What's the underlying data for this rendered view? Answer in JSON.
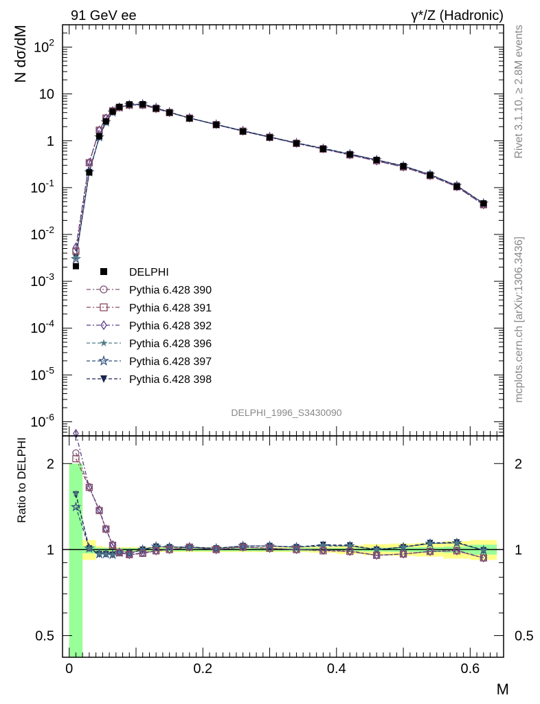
{
  "header": {
    "left": "91 GeV ee",
    "right": "γ*/Z (Hadronic)"
  },
  "side": {
    "rivet": "Rivet 3.1.10, ≥ 2.8M events",
    "mcplots": "mcplots.cern.ch [arXiv:1306.3436]"
  },
  "watermark": "DELPHI_1996_S3430090",
  "colors": {
    "data": "#000000",
    "p390": "#7d5678",
    "p391": "#8a4a5e",
    "p392": "#5b3b86",
    "p396": "#4e7b86",
    "p397": "#2f4d78",
    "p398": "#1a2550",
    "band_green": "#99ff99",
    "band_yellow": "#ffff88"
  },
  "chart_data": [
    {
      "type": "line",
      "panel": "main",
      "ylabel": "N dσ/dM",
      "xlabel": "",
      "yscale": "log",
      "ylim": [
        5e-07,
        300
      ],
      "xlim": [
        -0.01,
        0.65
      ],
      "ytick_labels": [
        "10^-6",
        "10^-5",
        "10^-4",
        "10^-3",
        "10^-2",
        "10^-1",
        "1",
        "10",
        "10^2"
      ],
      "x": [
        0.01,
        0.03,
        0.045,
        0.055,
        0.065,
        0.075,
        0.09,
        0.11,
        0.13,
        0.15,
        0.18,
        0.22,
        0.26,
        0.3,
        0.34,
        0.38,
        0.42,
        0.46,
        0.5,
        0.54,
        0.58,
        0.62
      ],
      "series": [
        {
          "name": "DELPHI",
          "marker": "filled-square",
          "values": [
            0.0021,
            0.21,
            1.25,
            2.6,
            4.2,
            5.3,
            6.0,
            6.0,
            4.9,
            4.0,
            3.0,
            2.2,
            1.58,
            1.18,
            0.88,
            0.67,
            0.51,
            0.39,
            0.285,
            0.183,
            0.105,
            0.046
          ]
        },
        {
          "name": "Pythia 6.428 390",
          "marker": "open-circle",
          "values": [
            0.0045,
            0.34,
            1.68,
            3.05,
            4.4,
            5.2,
            5.8,
            5.8,
            4.85,
            4.0,
            3.05,
            2.21,
            1.6,
            1.19,
            0.88,
            0.67,
            0.5,
            0.37,
            0.275,
            0.18,
            0.104,
            0.043
          ]
        },
        {
          "name": "Pythia 6.428 391",
          "marker": "open-square",
          "values": [
            0.0044,
            0.34,
            1.68,
            3.05,
            4.35,
            5.15,
            5.8,
            5.8,
            4.85,
            4.0,
            3.05,
            2.21,
            1.6,
            1.19,
            0.88,
            0.665,
            0.5,
            0.375,
            0.275,
            0.18,
            0.104,
            0.043
          ]
        },
        {
          "name": "Pythia 6.428 392",
          "marker": "open-diamond",
          "values": [
            0.0054,
            0.345,
            1.7,
            3.07,
            4.4,
            5.2,
            5.8,
            5.85,
            4.85,
            4.0,
            3.05,
            2.21,
            1.6,
            1.19,
            0.88,
            0.67,
            0.5,
            0.37,
            0.275,
            0.18,
            0.104,
            0.043
          ]
        },
        {
          "name": "Pythia 6.428 396",
          "marker": "filled-star",
          "values": [
            0.0033,
            0.215,
            1.2,
            2.5,
            4.05,
            5.15,
            5.85,
            6.05,
            5.05,
            4.08,
            3.07,
            2.23,
            1.63,
            1.21,
            0.9,
            0.685,
            0.52,
            0.39,
            0.29,
            0.19,
            0.11,
            0.046
          ]
        },
        {
          "name": "Pythia 6.428 397",
          "marker": "open-star",
          "values": [
            0.003,
            0.215,
            1.2,
            2.5,
            4.05,
            5.15,
            5.85,
            6.05,
            5.05,
            4.08,
            3.07,
            2.23,
            1.63,
            1.21,
            0.9,
            0.68,
            0.52,
            0.39,
            0.29,
            0.19,
            0.11,
            0.046
          ]
        },
        {
          "name": "Pythia 6.428 398",
          "marker": "filled-triangle-down",
          "values": [
            0.0033,
            0.215,
            1.2,
            2.5,
            4.05,
            5.15,
            5.85,
            6.05,
            5.05,
            4.08,
            3.07,
            2.23,
            1.63,
            1.21,
            0.9,
            0.69,
            0.52,
            0.39,
            0.29,
            0.19,
            0.11,
            0.046
          ]
        }
      ]
    },
    {
      "type": "line",
      "panel": "ratio",
      "ylabel": "Ratio to DELPHI",
      "xlabel": "M",
      "yscale": "log",
      "ylim": [
        0.42,
        2.5
      ],
      "xlim": [
        -0.01,
        0.65
      ],
      "ytick_labels": [
        "0.5",
        "1",
        "2"
      ],
      "xtick_labels": [
        "0",
        "0.2",
        "0.4",
        "0.6"
      ],
      "x": [
        0.01,
        0.03,
        0.045,
        0.055,
        0.065,
        0.075,
        0.09,
        0.11,
        0.13,
        0.15,
        0.18,
        0.22,
        0.26,
        0.3,
        0.34,
        0.38,
        0.42,
        0.46,
        0.5,
        0.54,
        0.58,
        0.62
      ],
      "bands": {
        "bin_edges": [
          0.0,
          0.02,
          0.04,
          0.05,
          0.06,
          0.07,
          0.08,
          0.1,
          0.12,
          0.14,
          0.16,
          0.2,
          0.24,
          0.28,
          0.32,
          0.36,
          0.4,
          0.44,
          0.48,
          0.52,
          0.56,
          0.6,
          0.64
        ],
        "green_halfwidth": [
          1.0,
          0.03,
          0.015,
          0.015,
          0.012,
          0.012,
          0.012,
          0.012,
          0.012,
          0.012,
          0.012,
          0.012,
          0.012,
          0.012,
          0.012,
          0.012,
          0.012,
          0.015,
          0.018,
          0.02,
          0.025,
          0.04
        ],
        "yellow_halfwidth": [
          1.0,
          0.08,
          0.03,
          0.02,
          0.02,
          0.02,
          0.02,
          0.02,
          0.02,
          0.02,
          0.02,
          0.02,
          0.02,
          0.02,
          0.02,
          0.025,
          0.035,
          0.045,
          0.05,
          0.055,
          0.07,
          0.08
        ]
      },
      "series": [
        {
          "name": "Pythia 6.428 390",
          "values": [
            2.18,
            1.66,
            1.37,
            1.18,
            1.04,
            0.98,
            0.96,
            0.97,
            0.99,
            1.0,
            1.02,
            1.0,
            1.02,
            1.01,
            1.0,
            0.995,
            0.99,
            0.955,
            0.965,
            0.985,
            0.995,
            0.935
          ]
        },
        {
          "name": "Pythia 6.428 391",
          "values": [
            2.08,
            1.65,
            1.37,
            1.18,
            1.035,
            0.975,
            0.96,
            0.97,
            0.99,
            1.0,
            1.02,
            1.0,
            1.02,
            1.01,
            1.0,
            0.99,
            0.985,
            0.955,
            0.965,
            0.985,
            0.99,
            0.935
          ]
        },
        {
          "name": "Pythia 6.428 392",
          "values": [
            2.55,
            1.65,
            1.38,
            1.18,
            1.04,
            0.98,
            0.96,
            0.975,
            0.99,
            1.0,
            1.02,
            1.0,
            1.02,
            1.01,
            1.0,
            0.995,
            0.985,
            0.955,
            0.965,
            0.985,
            0.99,
            0.935
          ]
        },
        {
          "name": "Pythia 6.428 396",
          "values": [
            1.57,
            1.01,
            0.965,
            0.965,
            0.96,
            0.975,
            0.97,
            1.0,
            1.025,
            1.02,
            1.02,
            1.01,
            1.03,
            1.03,
            1.02,
            1.035,
            1.03,
            1.0,
            1.02,
            1.05,
            1.055,
            0.995
          ]
        },
        {
          "name": "Pythia 6.428 397",
          "values": [
            1.41,
            1.01,
            0.965,
            0.965,
            0.96,
            0.975,
            0.97,
            1.0,
            1.025,
            1.02,
            1.02,
            1.01,
            1.03,
            1.03,
            1.02,
            1.03,
            1.03,
            1.0,
            1.02,
            1.05,
            1.055,
            0.995
          ]
        },
        {
          "name": "Pythia 6.428 398",
          "values": [
            1.56,
            1.01,
            0.965,
            0.965,
            0.96,
            0.975,
            0.97,
            1.0,
            1.025,
            1.02,
            1.02,
            1.01,
            1.03,
            1.03,
            1.02,
            1.04,
            1.035,
            1.0,
            1.02,
            1.055,
            1.06,
            0.995
          ]
        }
      ]
    }
  ]
}
